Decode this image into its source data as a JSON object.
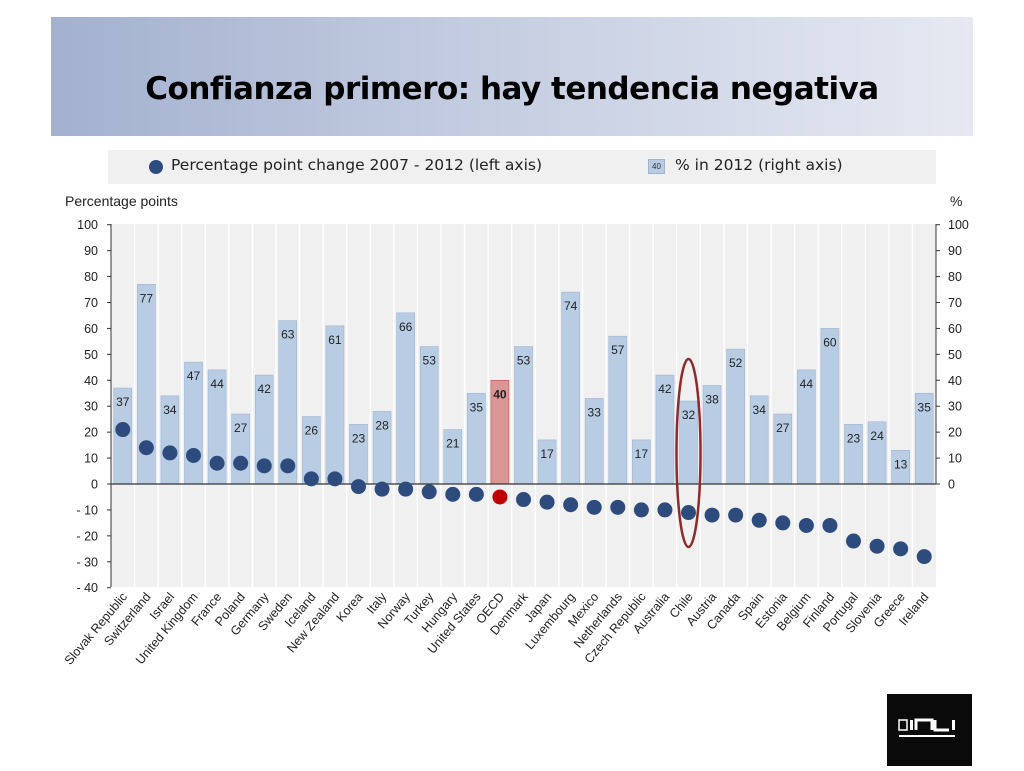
{
  "slide": {
    "title": "Confianza primero: hay tendencia negativa"
  },
  "legend": {
    "dot_label": "Percentage point change 2007 - 2012 (left axis)",
    "bar_label": "% in 2012 (right axis)",
    "bar_sample_value": "40"
  },
  "chart_data": {
    "type": "bar",
    "left_axis_label": "Percentage points",
    "right_axis_label": "%",
    "left_ylim": [
      -40,
      100
    ],
    "right_ylim": [
      0,
      100
    ],
    "left_ticks": [
      "100",
      "90",
      "80",
      "70",
      "60",
      "50",
      "40",
      "30",
      "20",
      "10",
      "0",
      "- 10",
      "- 20",
      "- 30",
      "- 40"
    ],
    "right_ticks": [
      "100",
      "90",
      "80",
      "70",
      "60",
      "50",
      "40",
      "30",
      "20",
      "10",
      "0"
    ],
    "categories": [
      "Slovak Republic",
      "Switzerland",
      "Israel",
      "United Kingdom",
      "France",
      "Poland",
      "Germany",
      "Sweden",
      "Iceland",
      "New Zealand",
      "Korea",
      "Italy",
      "Norway",
      "Turkey",
      "Hungary",
      "United States",
      "OECD",
      "Denmark",
      "Japan",
      "Luxembourg",
      "Mexico",
      "Netherlands",
      "Czech Republic",
      "Australia",
      "Chile",
      "Austria",
      "Canada",
      "Spain",
      "Estonia",
      "Belgium",
      "Finland",
      "Portugal",
      "Slovenia",
      "Greece",
      "Ireland"
    ],
    "series": [
      {
        "name": "% in 2012 (right axis)",
        "kind": "bar",
        "values": [
          37,
          77,
          34,
          47,
          44,
          27,
          42,
          63,
          26,
          61,
          23,
          28,
          66,
          53,
          21,
          35,
          40,
          53,
          17,
          74,
          33,
          57,
          17,
          42,
          32,
          38,
          52,
          34,
          27,
          44,
          60,
          23,
          24,
          13,
          35
        ]
      },
      {
        "name": "Percentage point change 2007 - 2012 (left axis)",
        "kind": "dot",
        "values": [
          21,
          14,
          12,
          11,
          8,
          8,
          7,
          7,
          2,
          2,
          -1,
          -2,
          -2,
          -3,
          -4,
          -4,
          -5,
          -6,
          -7,
          -8,
          -9,
          -9,
          -10,
          -10,
          -11,
          -12,
          -12,
          -14,
          -15,
          -16,
          -16,
          -22,
          -24,
          -25,
          -28
        ]
      }
    ],
    "highlight_category": "OECD",
    "circled_category": "Chile",
    "colors": {
      "bar": "#b8cde4",
      "bar_highlight": "#d99694",
      "dot": "#2e4b7e",
      "dot_highlight": "#c00000",
      "circle": "#8b2b2b",
      "plot_background": "#f0f0f0"
    }
  }
}
